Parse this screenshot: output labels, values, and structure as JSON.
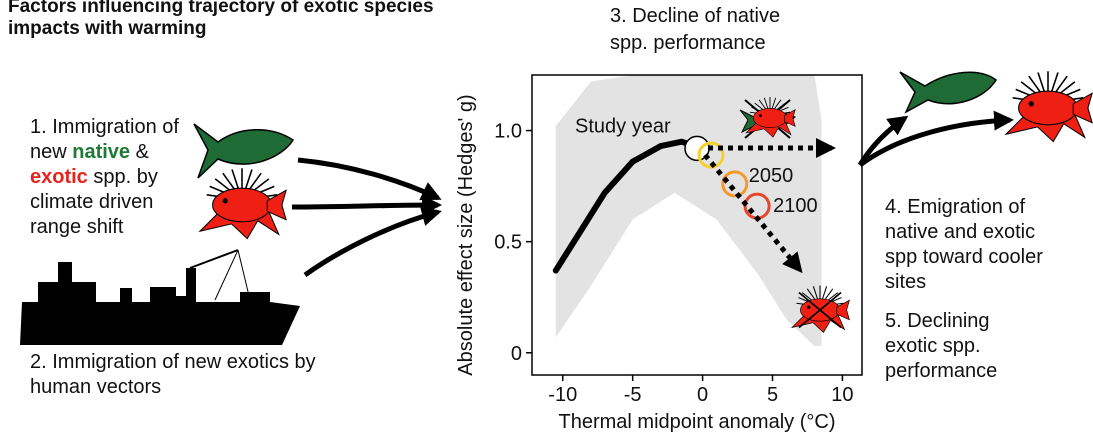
{
  "title": {
    "lines": [
      "Factors influencing trajectory of exotic species",
      "impacts with warming"
    ]
  },
  "steps": [
    {
      "lines": [
        [
          "1. Immigration of"
        ],
        [
          "new ",
          {
            "text": "native",
            "color": "#1e7a36"
          },
          " &"
        ],
        [
          {
            "text": "exotic",
            "color": "#e8231b"
          },
          " spp. by"
        ],
        [
          "climate driven"
        ],
        [
          "range shift"
        ]
      ]
    },
    {
      "lines": [
        [
          "2. Immigration of new exotics by"
        ],
        [
          "human vectors"
        ]
      ]
    },
    {
      "lines": [
        [
          "3. Decline of native"
        ],
        [
          "spp. performance"
        ]
      ]
    },
    {
      "lines": [
        [
          "4. Emigration of"
        ],
        [
          "native and exotic"
        ],
        [
          "spp toward cooler"
        ],
        [
          "sites"
        ]
      ]
    },
    {
      "lines": [
        [
          "5. Declining"
        ],
        [
          "exotic spp."
        ],
        [
          "performance"
        ]
      ]
    }
  ],
  "chart": {
    "xlabel": "Thermal midpoint anomaly (°C)",
    "ylabel": "Absolute effect size (Hedges' g)",
    "xlim": [
      -12.2,
      11.4
    ],
    "ylim": [
      -0.1,
      1.25
    ],
    "xticks": [
      -10,
      -5,
      0,
      5,
      10
    ],
    "yticks": [
      0,
      0.5,
      {
        "value": 1,
        "label": "1.0"
      }
    ],
    "band": {
      "color": "#e3e3e3",
      "x": [
        -10.5,
        -8,
        -5,
        -2,
        1,
        4,
        6,
        8,
        8.5
      ],
      "upper": [
        1.02,
        1.22,
        1.25,
        1.25,
        1.25,
        1.25,
        1.25,
        1.25,
        1.05
      ],
      "lower": [
        0.07,
        0.3,
        0.6,
        0.72,
        0.6,
        0.35,
        0.15,
        0.03,
        0.03
      ]
    },
    "curve": {
      "color": "#000000",
      "x": [
        -10.5,
        -9,
        -7,
        -5,
        -3,
        -1.5,
        -0.5
      ],
      "y": [
        0.37,
        0.52,
        0.72,
        0.86,
        0.93,
        0.95,
        0.93
      ]
    },
    "points": [
      {
        "x": -0.4,
        "y": 0.92,
        "color": "#ffffff",
        "label": "Study year"
      },
      {
        "x": 0.6,
        "y": 0.89,
        "color": "#f5d22a"
      },
      {
        "x": 2.3,
        "y": 0.76,
        "color": "#f39a2a",
        "label": "2050"
      },
      {
        "x": 3.9,
        "y": 0.66,
        "color": "#e8462b",
        "label": "2100"
      }
    ]
  }
}
